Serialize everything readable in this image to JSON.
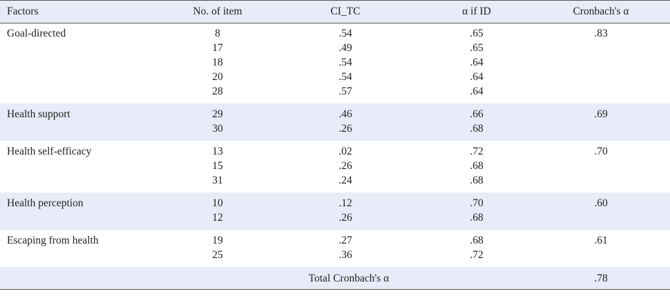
{
  "header": [
    "Factors",
    "No. of item",
    "CI_TC",
    "α if ID",
    "Cronbach's α"
  ],
  "groups": [
    {
      "factor": "Goal-directed",
      "alpha": ".83",
      "items": [
        [
          "8",
          ".54",
          ".65"
        ],
        [
          "17",
          ".49",
          ".65"
        ],
        [
          "18",
          ".54",
          ".64"
        ],
        [
          "20",
          ".54",
          ".64"
        ],
        [
          "28",
          ".57",
          ".64"
        ]
      ]
    },
    {
      "factor": "Health support",
      "alpha": ".69",
      "items": [
        [
          "29",
          ".46",
          ".66"
        ],
        [
          "30",
          ".26",
          ".68"
        ]
      ]
    },
    {
      "factor": "Health self-efficacy",
      "alpha": ".70",
      "items": [
        [
          "13",
          ".02",
          ".72"
        ],
        [
          "15",
          ".26",
          ".68"
        ],
        [
          "31",
          ".24",
          ".68"
        ]
      ]
    },
    {
      "factor": "Health perception",
      "alpha": ".60",
      "items": [
        [
          "10",
          ".12",
          ".70"
        ],
        [
          "12",
          ".26",
          ".68"
        ]
      ]
    },
    {
      "factor": "Escaping from health",
      "alpha": ".61",
      "items": [
        [
          "19",
          ".27",
          ".68"
        ],
        [
          "25",
          ".36",
          ".72"
        ]
      ]
    }
  ],
  "total": {
    "label": "Total Cronbach's α",
    "value": ".78"
  }
}
